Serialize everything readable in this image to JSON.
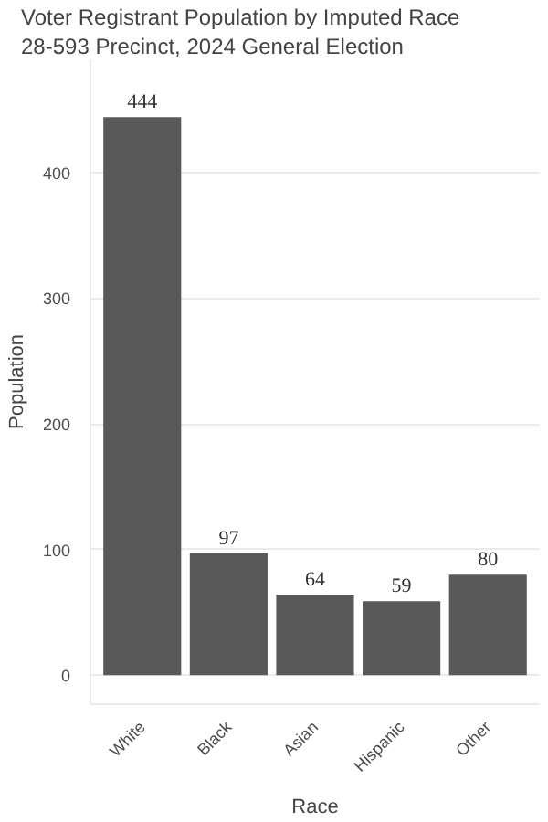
{
  "chart_data": {
    "type": "bar",
    "title": "Voter Registrant Population by Imputed Race",
    "subtitle": "28-593 Precinct,  2024 General Election",
    "xlabel": "Race",
    "ylabel": "Population",
    "categories": [
      "White",
      "Black",
      "Asian",
      "Hispanic",
      "Other"
    ],
    "values": [
      444,
      97,
      64,
      59,
      80
    ],
    "color": "#595959",
    "ylim": [
      -23,
      490
    ],
    "yticks": [
      0,
      100,
      200,
      300,
      400
    ],
    "grid": "y",
    "data_labels": true
  }
}
